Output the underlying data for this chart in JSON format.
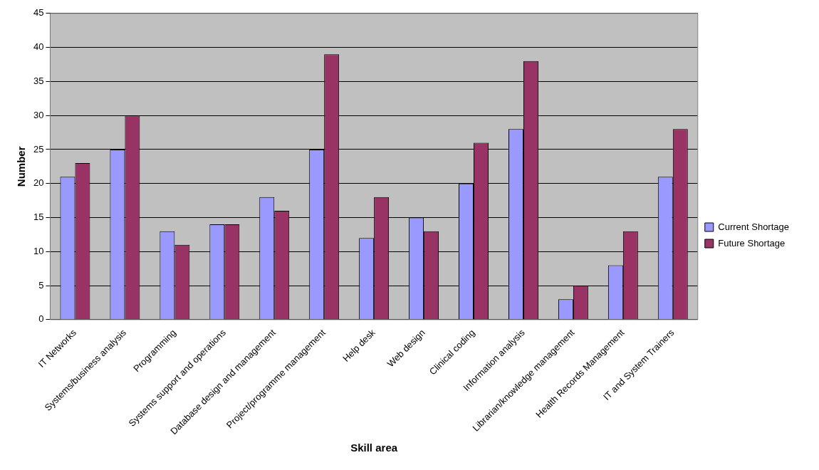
{
  "chart_data": {
    "type": "bar",
    "xlabel": "Skill area",
    "ylabel": "Number",
    "categories": [
      "IT Networks",
      "Systems/business analysis",
      "Programming",
      "Systems support and operations",
      "Database design and management",
      "Project/programme management",
      "Help desk",
      "Web design",
      "Clinical coding",
      "Information analysis",
      "Librarian/knowledge management",
      "Health Records Management",
      "IT and System Trainers"
    ],
    "series": [
      {
        "name": "Current Shortage",
        "color": "#9999ff",
        "values": [
          21,
          25,
          13,
          14,
          18,
          25,
          12,
          15,
          20,
          28,
          3,
          8,
          21
        ]
      },
      {
        "name": "Future Shortage",
        "color": "#993366",
        "values": [
          23,
          30,
          11,
          14,
          16,
          39,
          18,
          13,
          26,
          38,
          5,
          13,
          28
        ]
      }
    ],
    "ylim": [
      0,
      45
    ],
    "yticks": [
      0,
      5,
      10,
      15,
      20,
      25,
      30,
      35,
      40,
      45
    ],
    "grid": "y",
    "legend": "right"
  }
}
